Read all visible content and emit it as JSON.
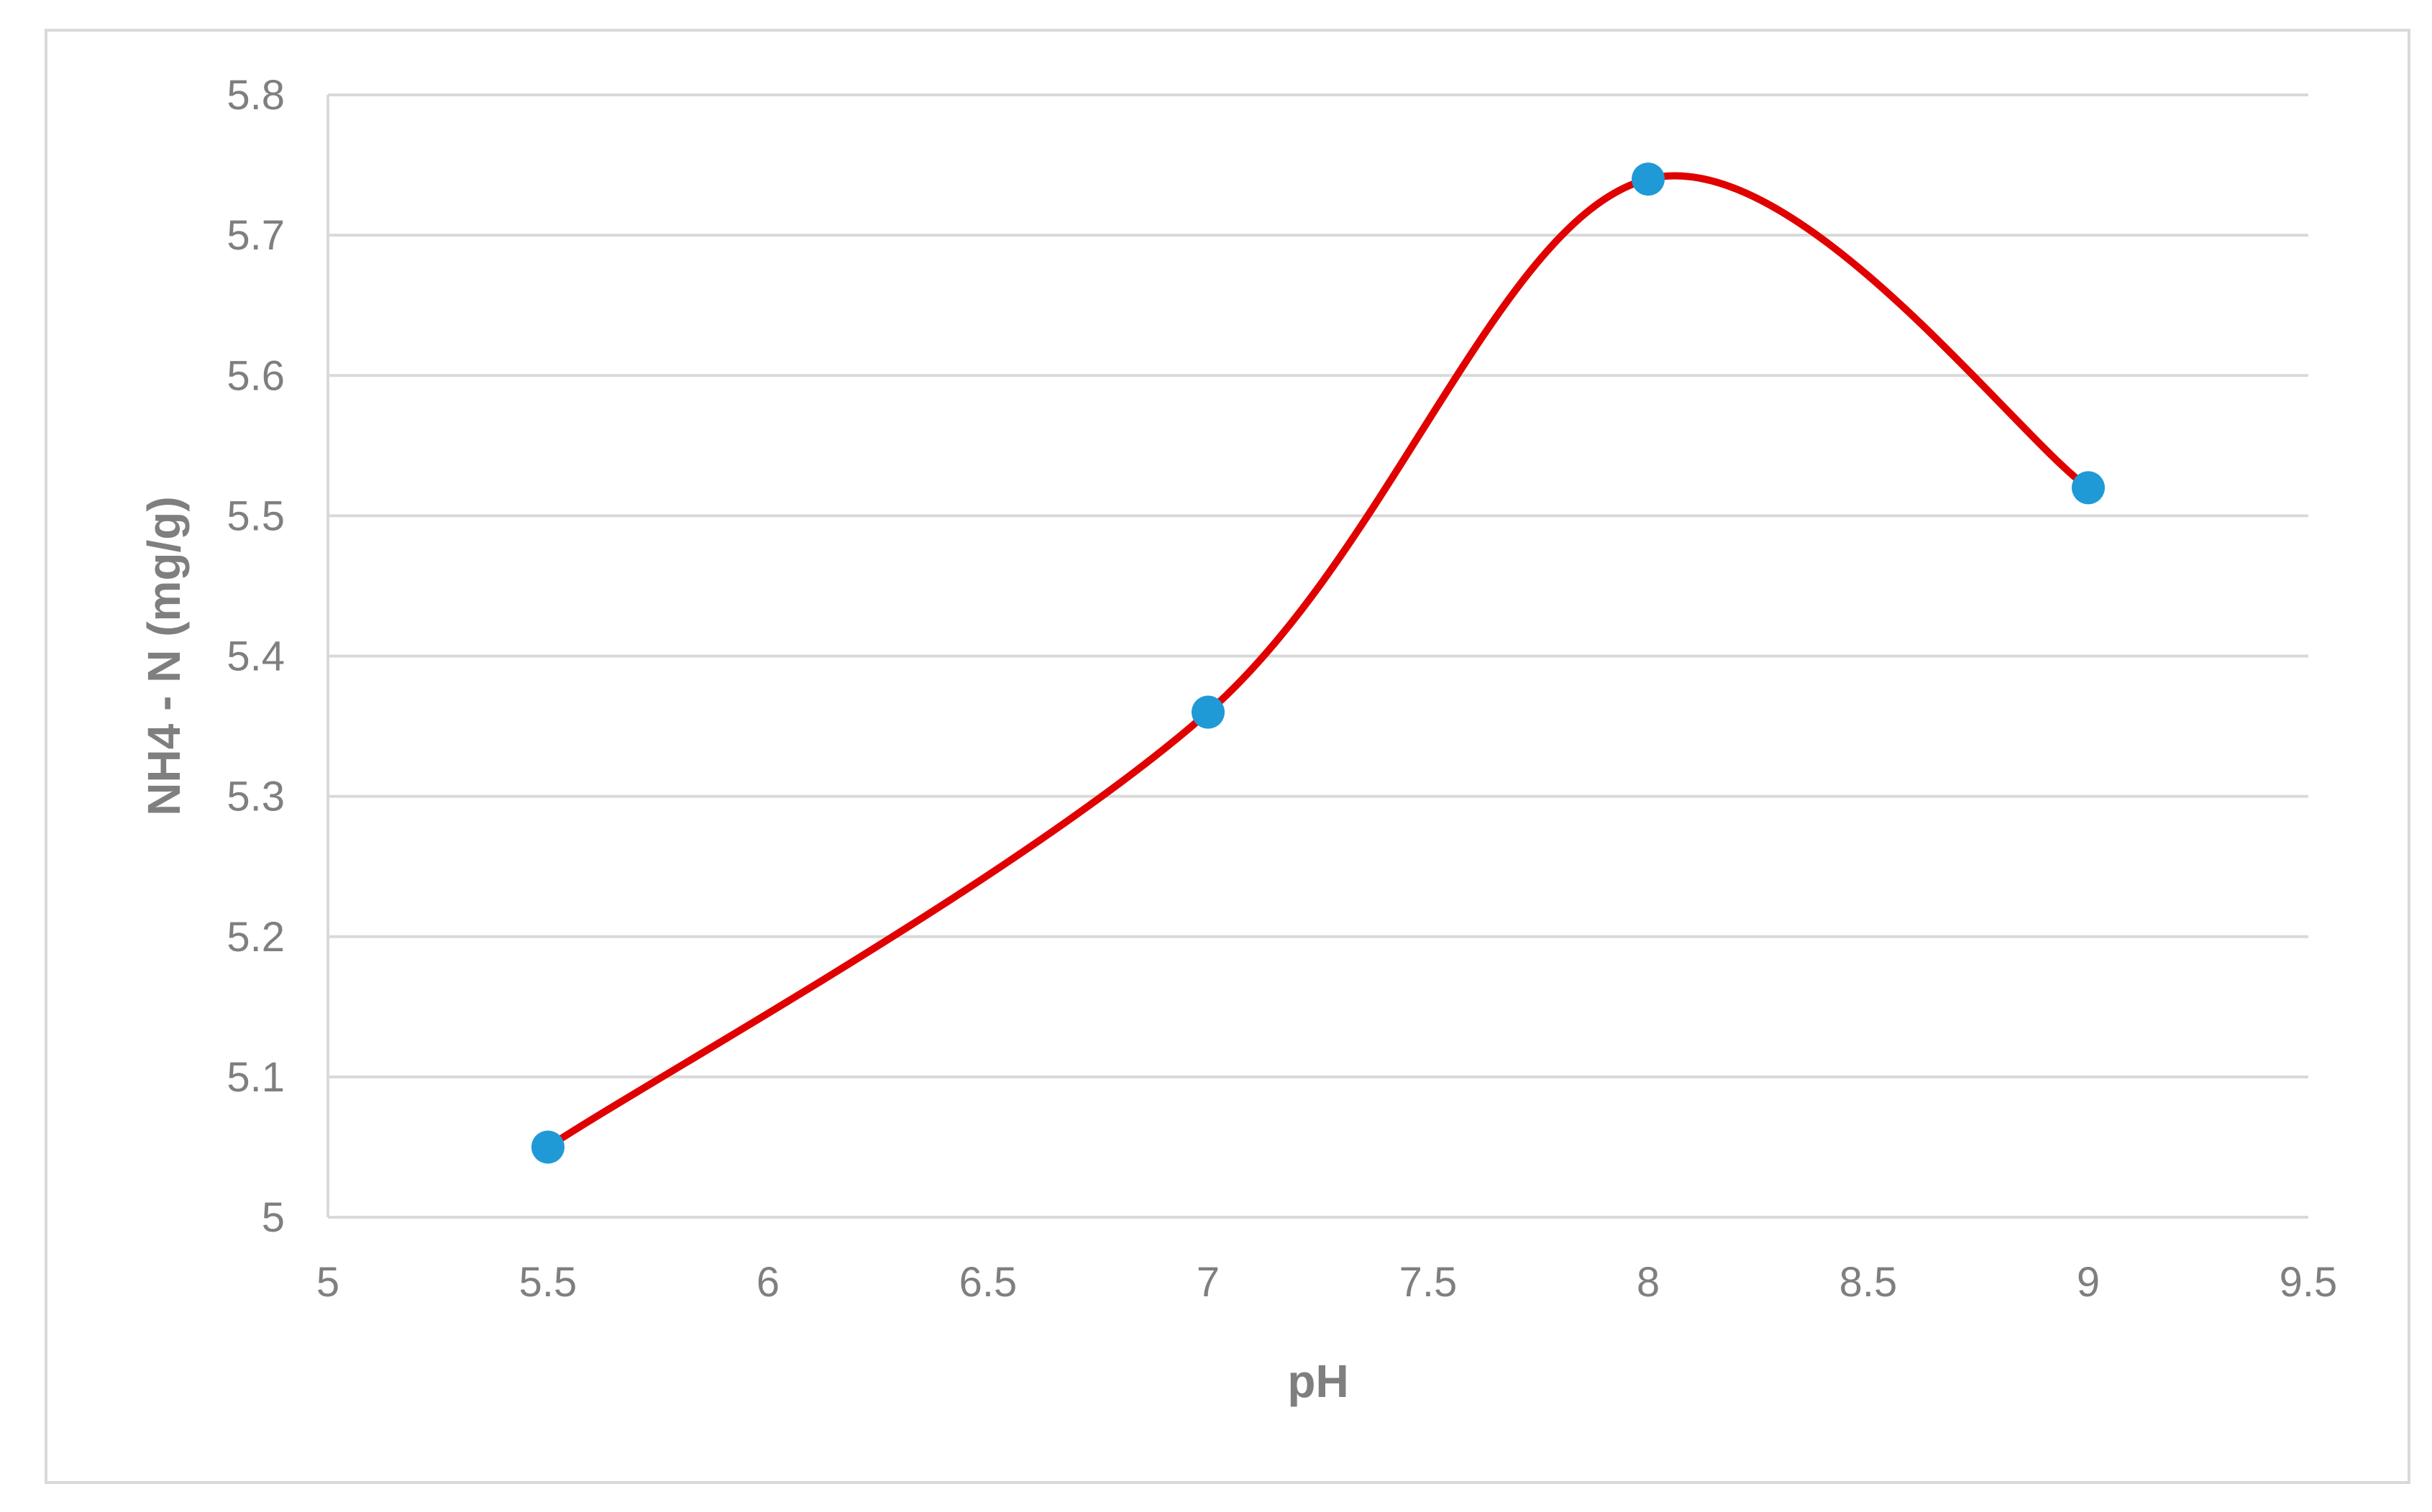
{
  "chart_data": {
    "type": "line",
    "title": "",
    "xlabel": "pH",
    "ylabel": "NH4 - N (mg/g)",
    "xlim": [
      5,
      9.5
    ],
    "ylim": [
      5,
      5.8
    ],
    "x_ticks": [
      "5",
      "5.5",
      "6",
      "6.5",
      "7",
      "7.5",
      "8",
      "8.5",
      "9",
      "9.5"
    ],
    "y_ticks": [
      "5",
      "5.1",
      "5.2",
      "5.3",
      "5.4",
      "5.5",
      "5.6",
      "5.7",
      "5.8"
    ],
    "grid": "horizontal",
    "smooth": true,
    "series": [
      {
        "x": [
          5.5,
          7,
          8,
          9
        ],
        "y": [
          5.05,
          5.36,
          5.74,
          5.52
        ]
      }
    ],
    "colors": {
      "line": "#e00000",
      "marker": "#1f9ad6",
      "grid": "#d9d9d9",
      "text": "#7f7f7f"
    }
  }
}
